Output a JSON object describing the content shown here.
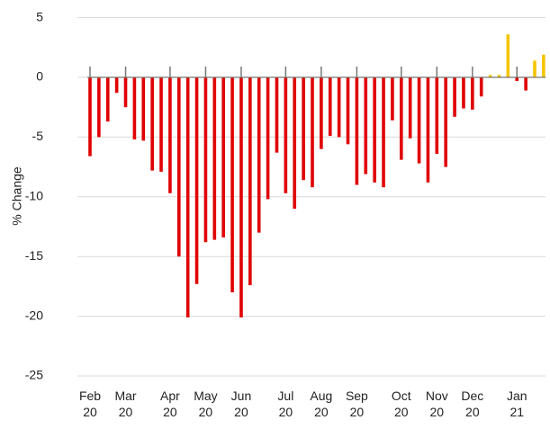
{
  "chart_data": {
    "type": "bar",
    "y_label": "% Change",
    "categories": [
      "Feb\n20",
      null,
      null,
      null,
      "Mar\n20",
      null,
      null,
      null,
      null,
      "Apr\n20",
      null,
      null,
      null,
      "May\n20",
      null,
      null,
      null,
      "Jun\n20",
      null,
      null,
      null,
      null,
      "Jul\n20",
      null,
      null,
      null,
      "Aug\n20",
      null,
      null,
      null,
      "Sep\n20",
      null,
      null,
      null,
      null,
      "Oct\n20",
      null,
      null,
      null,
      "Nov\n20",
      null,
      null,
      null,
      "Dec\n20",
      null,
      null,
      null,
      null,
      "Jan\n21",
      null,
      null,
      null
    ],
    "values": [
      -6.6,
      -5.0,
      -3.7,
      -1.3,
      -2.5,
      -5.2,
      -5.3,
      -7.8,
      -7.9,
      -9.7,
      -15.0,
      -20.1,
      -17.3,
      -13.8,
      -13.6,
      -13.4,
      -18.0,
      -20.1,
      -17.4,
      -13.0,
      -10.2,
      -6.3,
      -9.7,
      -11.0,
      -8.6,
      -9.2,
      -6.0,
      -4.9,
      -5.0,
      -5.6,
      -9.0,
      -8.1,
      -8.8,
      -9.2,
      -3.6,
      -6.9,
      -5.1,
      -7.2,
      -8.8,
      -6.4,
      -7.5,
      -3.3,
      -2.6,
      -2.7,
      -1.6,
      0.2,
      0.2,
      3.6,
      -0.3,
      -1.1,
      1.4,
      1.9
    ],
    "colors": {
      "negative": "#e00000",
      "positive": "#f5c400"
    },
    "ylim": [
      -27,
      6
    ],
    "yticks": [
      5,
      0,
      -5,
      -10,
      -15,
      -20,
      -25
    ],
    "grid": true
  }
}
